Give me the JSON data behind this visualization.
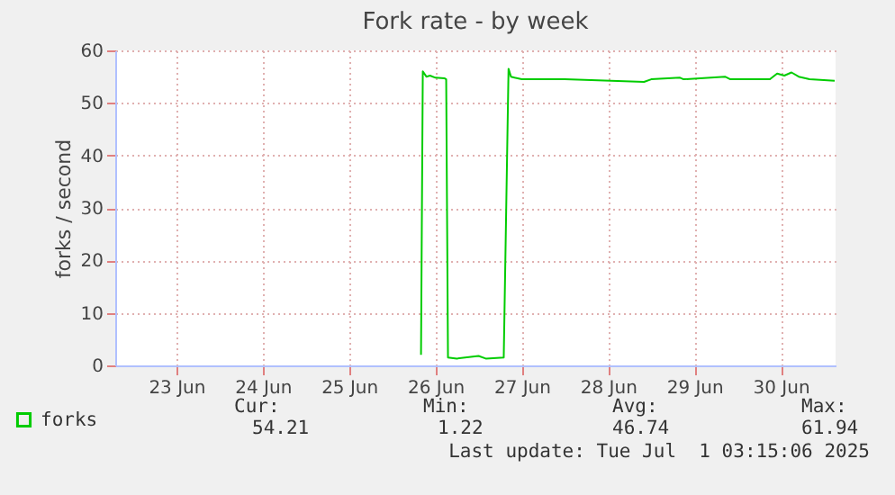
{
  "chart_data": {
    "type": "line",
    "title": "Fork rate - by week",
    "ylabel": "forks / second",
    "x": [
      "2025-06-26T08:00",
      "2025-06-26T08:30",
      "2025-06-26T09:30",
      "2025-06-26T10:30",
      "2025-06-26T12:00",
      "2025-06-26T14:30",
      "2025-06-26T15:00",
      "2025-06-26T15:30",
      "2025-06-26T18:00",
      "2025-06-27T00:00",
      "2025-06-27T02:00",
      "2025-06-27T07:00",
      "2025-06-27T08:20",
      "2025-06-27T09:00",
      "2025-06-27T10:00",
      "2025-06-27T12:00",
      "2025-06-28T00:00",
      "2025-06-28T22:00",
      "2025-06-29T00:00",
      "2025-06-29T08:00",
      "2025-06-29T09:00",
      "2025-06-29T20:30",
      "2025-06-29T22:00",
      "2025-06-30T09:00",
      "2025-06-30T11:00",
      "2025-06-30T13:00",
      "2025-06-30T15:00",
      "2025-06-30T17:00",
      "2025-06-30T20:00",
      "2025-07-01T03:00"
    ],
    "series": [
      {
        "name": "forks",
        "color": "#00cc00",
        "values": [
          2,
          56,
          55,
          55.2,
          54.8,
          54.7,
          54.5,
          1.5,
          1.3,
          1.8,
          1.3,
          1.5,
          56.5,
          55,
          54.8,
          54.5,
          54.5,
          54,
          54.5,
          54.8,
          54.5,
          55,
          54.5,
          54.5,
          55.6,
          55.2,
          55.8,
          55,
          54.5,
          54.2
        ]
      }
    ],
    "xlim": [
      "2025-06-22T19:00",
      "2025-07-01T03:15"
    ],
    "xticks": [
      {
        "value": "2025-06-23T12:00",
        "label": "23 Jun"
      },
      {
        "value": "2025-06-24T12:00",
        "label": "24 Jun"
      },
      {
        "value": "2025-06-25T12:00",
        "label": "25 Jun"
      },
      {
        "value": "2025-06-26T12:00",
        "label": "26 Jun"
      },
      {
        "value": "2025-06-27T12:00",
        "label": "27 Jun"
      },
      {
        "value": "2025-06-28T12:00",
        "label": "28 Jun"
      },
      {
        "value": "2025-06-29T12:00",
        "label": "29 Jun"
      },
      {
        "value": "2025-06-30T12:00",
        "label": "30 Jun"
      }
    ],
    "ylim": [
      0,
      60
    ],
    "yticks": [
      0,
      10,
      20,
      30,
      40,
      50,
      60
    ],
    "grid": true,
    "legend": "bottom left",
    "annotations": [
      "Cur:",
      "54.21",
      "Min:",
      "1.22",
      "Avg:",
      "46.74",
      "Max:",
      "61.94",
      "Last update: Tue Jul  1 03:15:06 2025"
    ]
  }
}
